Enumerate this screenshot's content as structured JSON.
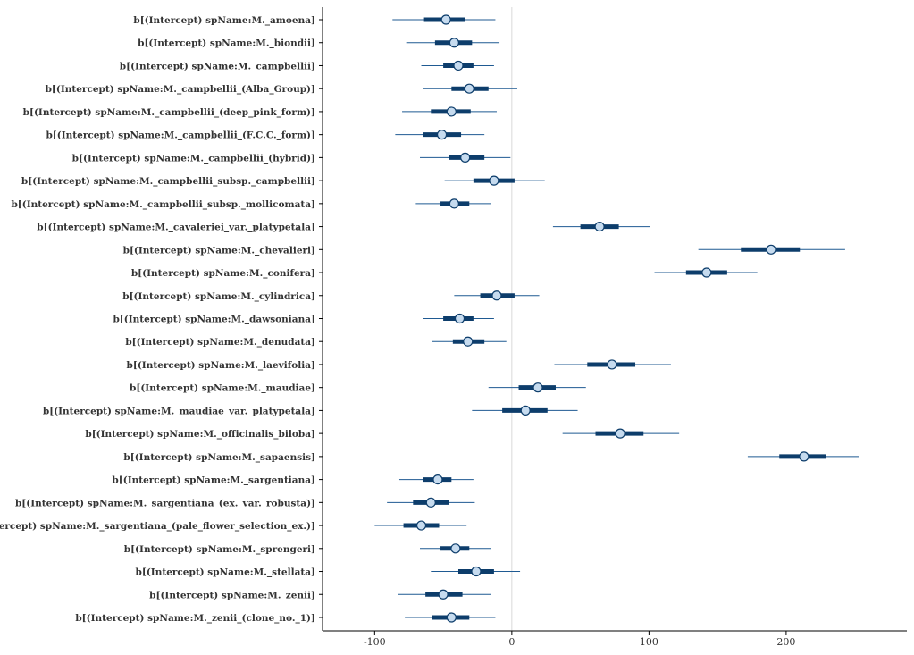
{
  "colors": {
    "interval_outer": "#1f5a92",
    "interval_inner": "#0d3d6b",
    "point_fill": "#c6dbef",
    "point_stroke": "#0d3d6b",
    "reference_line": "#d9d9d9"
  },
  "chart_data": {
    "type": "interval",
    "title": "",
    "xlabel": "",
    "ylabel": "",
    "xlim": [
      -138,
      288
    ],
    "x_ticks": [
      -100,
      0,
      100,
      200
    ],
    "x_tick_labels": [
      "-100",
      "0",
      "100",
      "200"
    ],
    "reference_line_x": 0,
    "grid": false,
    "series": [
      {
        "label": "b[(Intercept) spName:M._amoena]",
        "median": -48,
        "inner": [
          -64,
          -34
        ],
        "outer": [
          -87,
          -12
        ]
      },
      {
        "label": "b[(Intercept) spName:M._biondii]",
        "median": -42,
        "inner": [
          -56,
          -29
        ],
        "outer": [
          -77,
          -9
        ]
      },
      {
        "label": "b[(Intercept) spName:M._campbellii]",
        "median": -39,
        "inner": [
          -50,
          -28
        ],
        "outer": [
          -66,
          -13
        ]
      },
      {
        "label": "b[(Intercept) spName:M._campbellii_(Alba_Group)]",
        "median": -31,
        "inner": [
          -44,
          -17
        ],
        "outer": [
          -65,
          4
        ]
      },
      {
        "label": "b[(Intercept) spName:M._campbellii_(deep_pink_form)]",
        "median": -44,
        "inner": [
          -59,
          -30
        ],
        "outer": [
          -80,
          -11
        ]
      },
      {
        "label": "b[(Intercept) spName:M._campbellii_(F.C.C._form)]",
        "median": -51,
        "inner": [
          -65,
          -37
        ],
        "outer": [
          -85,
          -20
        ]
      },
      {
        "label": "b[(Intercept) spName:M._campbellii_(hybrid)]",
        "median": -34,
        "inner": [
          -46,
          -20
        ],
        "outer": [
          -67,
          -1
        ]
      },
      {
        "label": "b[(Intercept) spName:M._campbellii_subsp._campbellii]",
        "median": -13,
        "inner": [
          -28,
          2
        ],
        "outer": [
          -49,
          24
        ]
      },
      {
        "label": "b[(Intercept) spName:M._campbellii_subsp._mollicomata]",
        "median": -42,
        "inner": [
          -52,
          -31
        ],
        "outer": [
          -70,
          -15
        ]
      },
      {
        "label": "b[(Intercept) spName:M._cavaleriei_var._platypetala]",
        "median": 64,
        "inner": [
          50,
          78
        ],
        "outer": [
          30,
          101
        ]
      },
      {
        "label": "b[(Intercept) spName:M._chevalieri]",
        "median": 189,
        "inner": [
          167,
          210
        ],
        "outer": [
          136,
          243
        ]
      },
      {
        "label": "b[(Intercept) spName:M._conifera]",
        "median": 142,
        "inner": [
          127,
          157
        ],
        "outer": [
          104,
          179
        ]
      },
      {
        "label": "b[(Intercept) spName:M._cylindrica]",
        "median": -11,
        "inner": [
          -23,
          2
        ],
        "outer": [
          -42,
          20
        ]
      },
      {
        "label": "b[(Intercept) spName:M._dawsoniana]",
        "median": -38,
        "inner": [
          -50,
          -28
        ],
        "outer": [
          -65,
          -13
        ]
      },
      {
        "label": "b[(Intercept) spName:M._denudata]",
        "median": -32,
        "inner": [
          -43,
          -20
        ],
        "outer": [
          -58,
          -4
        ]
      },
      {
        "label": "b[(Intercept) spName:M._laevifolia]",
        "median": 73,
        "inner": [
          55,
          90
        ],
        "outer": [
          31,
          116
        ]
      },
      {
        "label": "b[(Intercept) spName:M._maudiae]",
        "median": 19,
        "inner": [
          5,
          32
        ],
        "outer": [
          -17,
          54
        ]
      },
      {
        "label": "b[(Intercept) spName:M._maudiae_var._platypetala]",
        "median": 10,
        "inner": [
          -7,
          26
        ],
        "outer": [
          -29,
          48
        ]
      },
      {
        "label": "b[(Intercept) spName:M._officinalis_biloba]",
        "median": 79,
        "inner": [
          61,
          96
        ],
        "outer": [
          37,
          122
        ]
      },
      {
        "label": "b[(Intercept) spName:M._sapaensis]",
        "median": 213,
        "inner": [
          195,
          229
        ],
        "outer": [
          172,
          253
        ]
      },
      {
        "label": "b[(Intercept) spName:M._sargentiana]",
        "median": -54,
        "inner": [
          -65,
          -44
        ],
        "outer": [
          -82,
          -28
        ]
      },
      {
        "label": "b[(Intercept) spName:M._sargentiana_(ex._var._robusta)]",
        "median": -59,
        "inner": [
          -72,
          -46
        ],
        "outer": [
          -91,
          -27
        ]
      },
      {
        "label": "b[(Intercept) spName:M._sargentiana_(pale_flower_selection_ex.)]",
        "median": -66,
        "inner": [
          -79,
          -53
        ],
        "outer": [
          -100,
          -33
        ]
      },
      {
        "label": "b[(Intercept) spName:M._sprengeri]",
        "median": -41,
        "inner": [
          -52,
          -31
        ],
        "outer": [
          -67,
          -15
        ]
      },
      {
        "label": "b[(Intercept) spName:M._stellata]",
        "median": -26,
        "inner": [
          -39,
          -13
        ],
        "outer": [
          -59,
          6
        ]
      },
      {
        "label": "b[(Intercept) spName:M._zenii]",
        "median": -50,
        "inner": [
          -63,
          -36
        ],
        "outer": [
          -83,
          -15
        ]
      },
      {
        "label": "b[(Intercept) spName:M._zenii_(clone_no._1)]",
        "median": -44,
        "inner": [
          -58,
          -31
        ],
        "outer": [
          -78,
          -12
        ]
      }
    ]
  }
}
